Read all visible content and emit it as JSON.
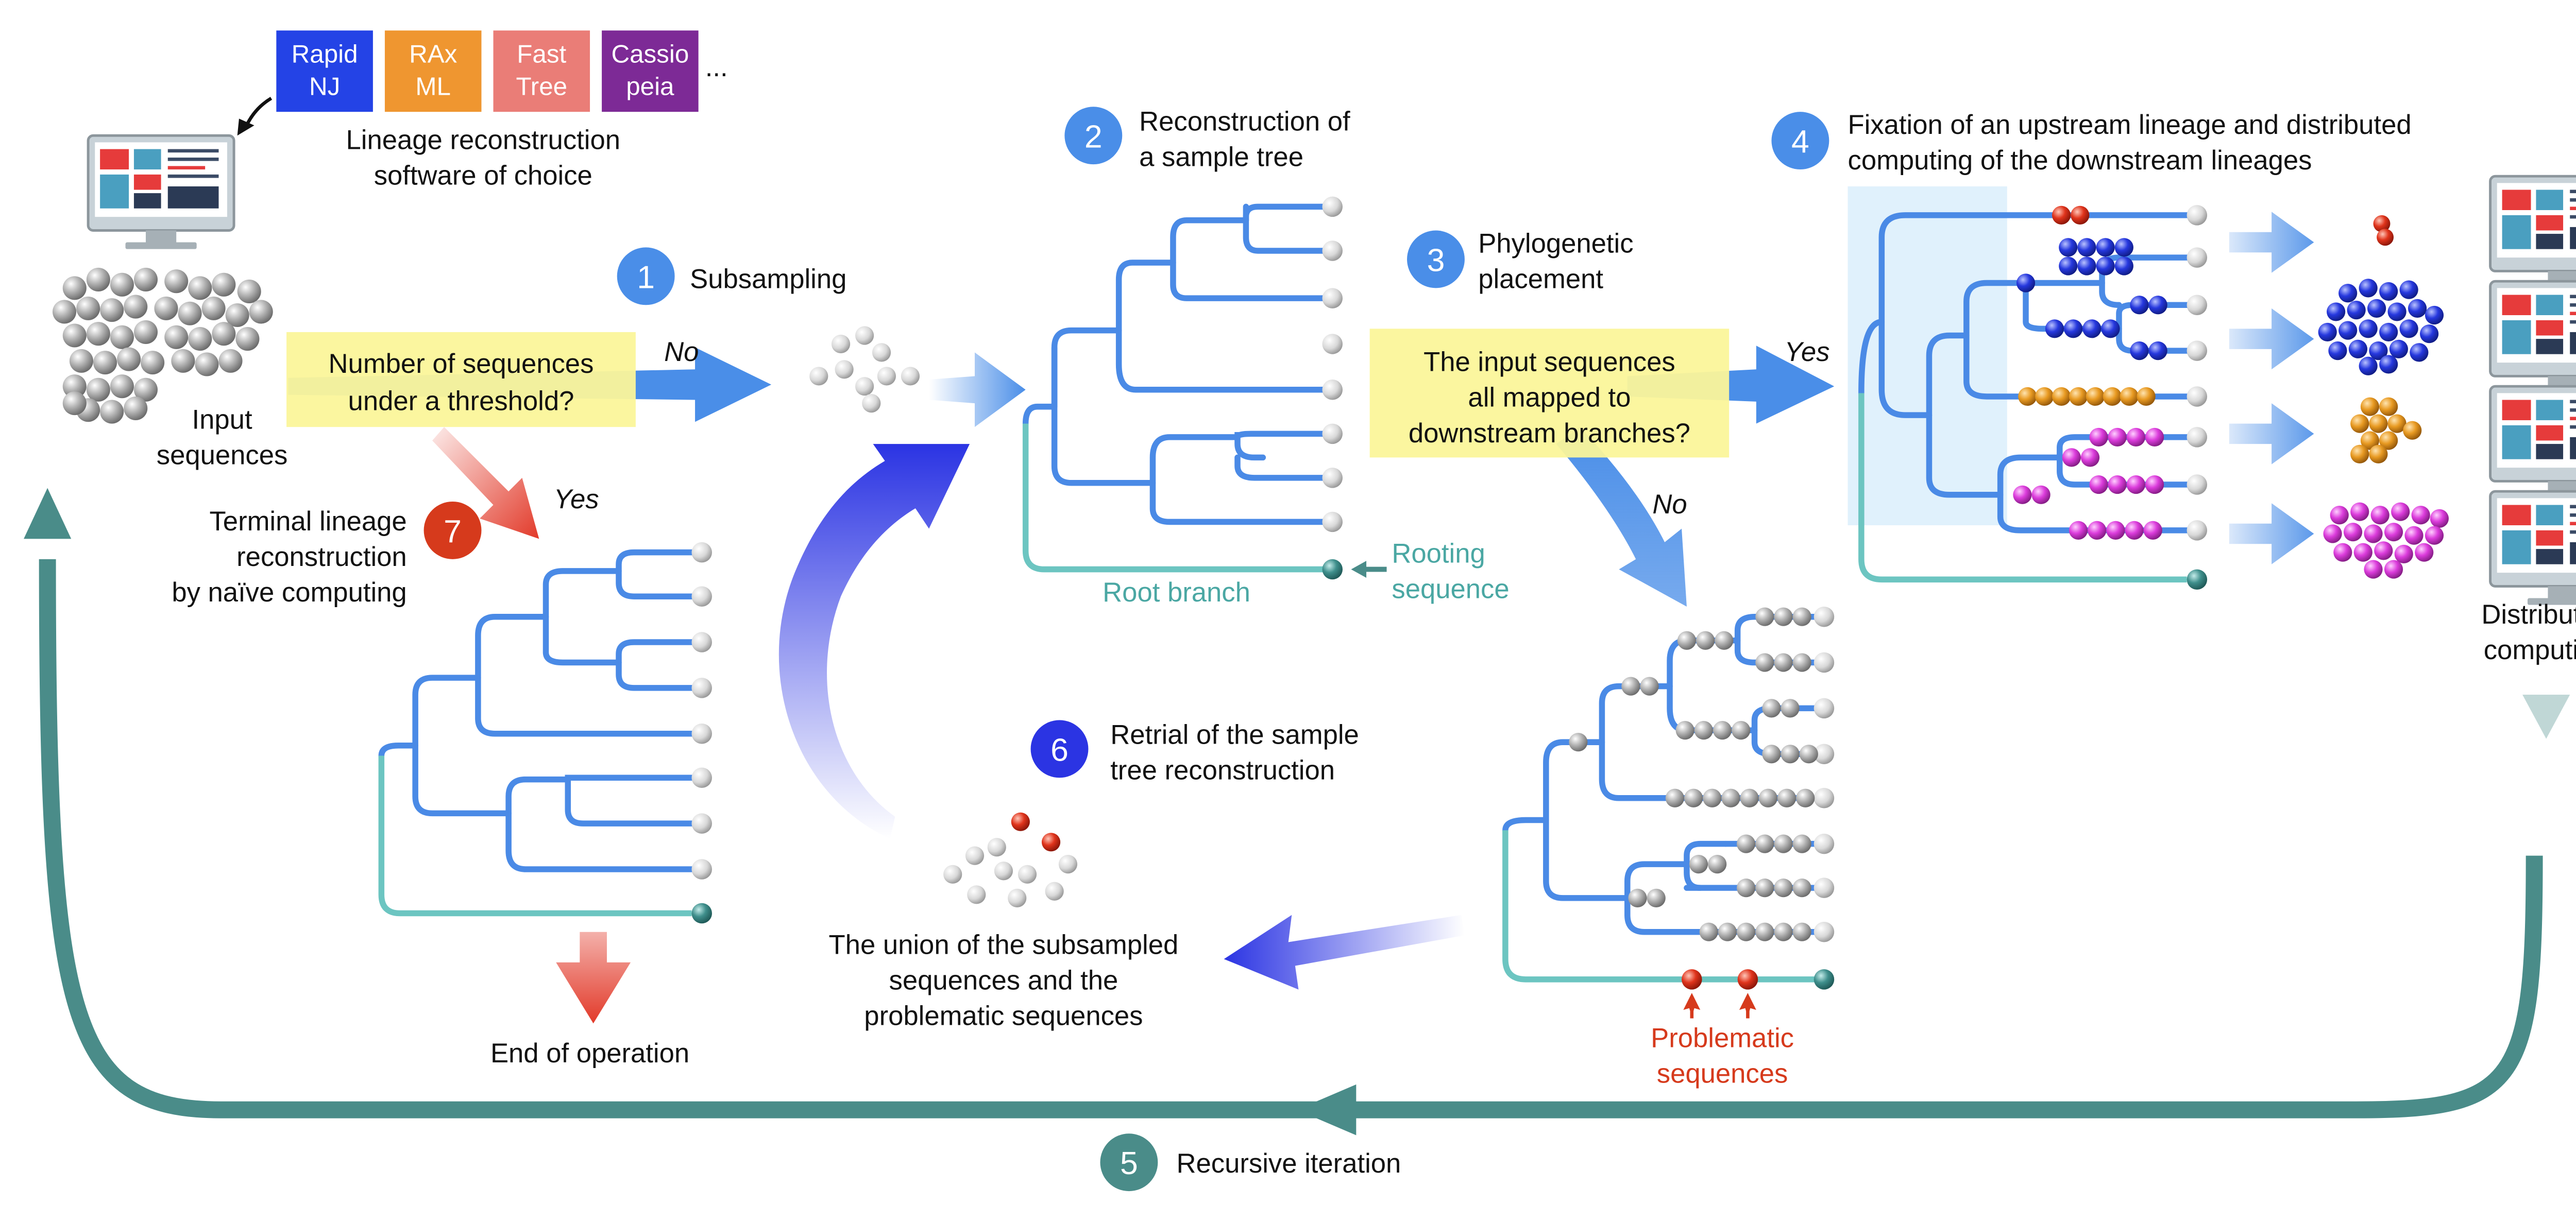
{
  "software": {
    "boxes": [
      {
        "line1": "Rapid",
        "line2": "NJ",
        "color": "#2443e6"
      },
      {
        "line1": "RAx",
        "line2": "ML",
        "color": "#ef9630"
      },
      {
        "line1": "Fast",
        "line2": "Tree",
        "color": "#ea7d77"
      },
      {
        "line1": "Cassio",
        "line2": "peia",
        "color": "#7d2a96"
      }
    ],
    "more": "...",
    "caption1": "Lineage reconstruction",
    "caption2": "software of choice"
  },
  "input": {
    "line1": "Input",
    "line2": "sequences"
  },
  "decision1": {
    "line1": "Number of sequences",
    "line2": "under a threshold?",
    "no": "No",
    "yes": "Yes"
  },
  "decision2": {
    "line1": "The input sequences",
    "line2": "all mapped to",
    "line3": "downstream branches?",
    "yes": "Yes",
    "no": "No"
  },
  "steps": {
    "s1": {
      "num": "1",
      "line1": "Subsampling"
    },
    "s2": {
      "num": "2",
      "line1": "Reconstruction of",
      "line2": "a sample tree"
    },
    "s3": {
      "num": "3",
      "line1": "Phylogenetic",
      "line2": "placement"
    },
    "s4": {
      "num": "4",
      "line1": "Fixation of an upstream lineage and distributed",
      "line2": "computing of the downstream lineages"
    },
    "s5": {
      "num": "5",
      "line1": "Recursive iteration"
    },
    "s6": {
      "num": "6",
      "line1": "Retrial of the sample",
      "line2": "tree reconstruction"
    },
    "s7": {
      "num": "7",
      "line1": "Terminal lineage",
      "line2": "reconstruction",
      "line3": "by naïve computing"
    }
  },
  "labels": {
    "root_branch": "Root branch",
    "rooting1": "Rooting",
    "rooting2": "sequence",
    "end": "End of operation",
    "union1": "The union of the subsampled",
    "union2": "sequences and the",
    "union3": "problematic sequences",
    "problem1": "Problematic",
    "problem2": "sequences",
    "dist1": "Distributed",
    "dist2": "computing"
  },
  "colors": {
    "tree": "#4a8ae6",
    "root": "#6cc5c1",
    "step": "#4a8ee8",
    "step6": "#2b34e3",
    "step7": "#d63a1c",
    "recursive": "#4a8c89",
    "red": "#d63a1c",
    "yellow": "#fbf69a",
    "blue_bead": "#2233d6",
    "orange_bead": "#e59a22",
    "magenta_bead": "#d83ad8"
  }
}
